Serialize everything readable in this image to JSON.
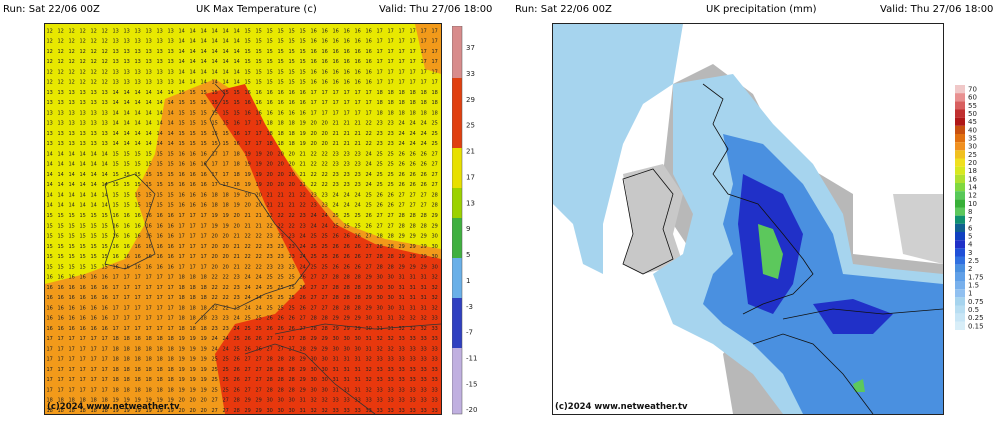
{
  "temperature_panel": {
    "run": "Run: Sat 22/06 00Z",
    "title": "UK Max Temperature (c)",
    "valid": "Valid: Thu 27/06 18:00",
    "copyright": "(c)2024 www.netweather.tv",
    "legend_labels": [
      "37",
      "33",
      "29",
      "25",
      "21",
      "17",
      "13",
      "9",
      "5",
      "1",
      "-3",
      "-7",
      "-11",
      "-15",
      "-20"
    ]
  },
  "precipitation_panel": {
    "run": "Run: Sat 22/06 00Z",
    "title": "UK precipitation (mm)",
    "valid": "Valid: Thu 27/06 18:00",
    "copyright": "(c)2024 www.netweather.tv",
    "legend_labels": [
      "70",
      "60",
      "55",
      "50",
      "45",
      "40",
      "35",
      "30",
      "25",
      "20",
      "18",
      "16",
      "14",
      "12",
      "10",
      "8",
      "7",
      "6",
      "5",
      "4",
      "3",
      "2.5",
      "2",
      "1.75",
      "1.5",
      "1",
      "0.75",
      "0.5",
      "0.25",
      "0.15"
    ]
  },
  "colors": {
    "temp_yellow": "#e8e800",
    "temp_orange": "#f29a1a",
    "temp_red": "#e8380d",
    "precip_light": "#a6d4ee",
    "precip_mid": "#4a90e0",
    "precip_dark": "#2030c8",
    "precip_green": "#5cc85c"
  }
}
